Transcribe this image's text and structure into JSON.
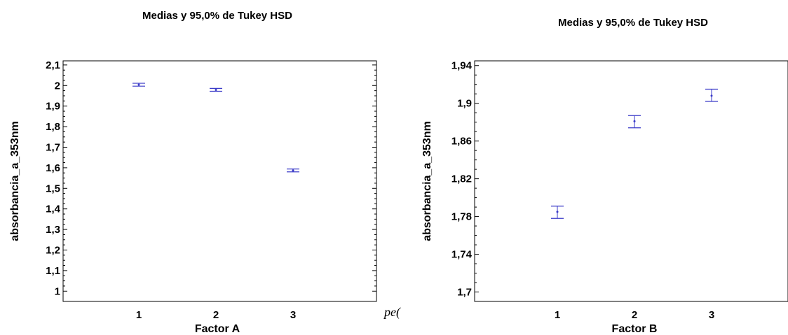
{
  "chart_data": [
    {
      "type": "interval",
      "title": "Medias y 95,0% de Tukey HSD",
      "xlabel": "Factor A",
      "ylabel": "absorbancia_a_353nm",
      "categories": [
        "1",
        "2",
        "3"
      ],
      "means": [
        2.004,
        1.979,
        1.587
      ],
      "lower": [
        1.997,
        1.972,
        1.58
      ],
      "upper": [
        2.011,
        1.986,
        1.594
      ],
      "ylim": [
        0.95,
        2.12
      ],
      "yticks": [
        1,
        1.1,
        1.2,
        1.3,
        1.4,
        1.5,
        1.6,
        1.7,
        1.8,
        1.9,
        2,
        2.1
      ],
      "ytick_labels": [
        "1",
        "1,1",
        "1,2",
        "1,3",
        "1,4",
        "1,5",
        "1,6",
        "1,7",
        "1,8",
        "1,9",
        "2",
        "2,1"
      ],
      "grid": false,
      "color": "#3a3ac8"
    },
    {
      "type": "interval",
      "title": "Medias y 95,0% de Tukey HSD",
      "xlabel": "Factor B",
      "ylabel": "absorbancia_a_353nm",
      "categories": [
        "1",
        "2",
        "3"
      ],
      "means": [
        1.785,
        1.881,
        1.908
      ],
      "lower": [
        1.778,
        1.874,
        1.902
      ],
      "upper": [
        1.791,
        1.887,
        1.915
      ],
      "ylim": [
        1.69,
        1.945
      ],
      "yticks": [
        1.7,
        1.74,
        1.78,
        1.82,
        1.86,
        1.9,
        1.94
      ],
      "ytick_labels": [
        "1,7",
        "1,74",
        "1,78",
        "1,82",
        "1,86",
        "1,9",
        "1,94"
      ],
      "grid": false,
      "color": "#3a3ac8"
    }
  ],
  "overlap_fragment": "pe("
}
